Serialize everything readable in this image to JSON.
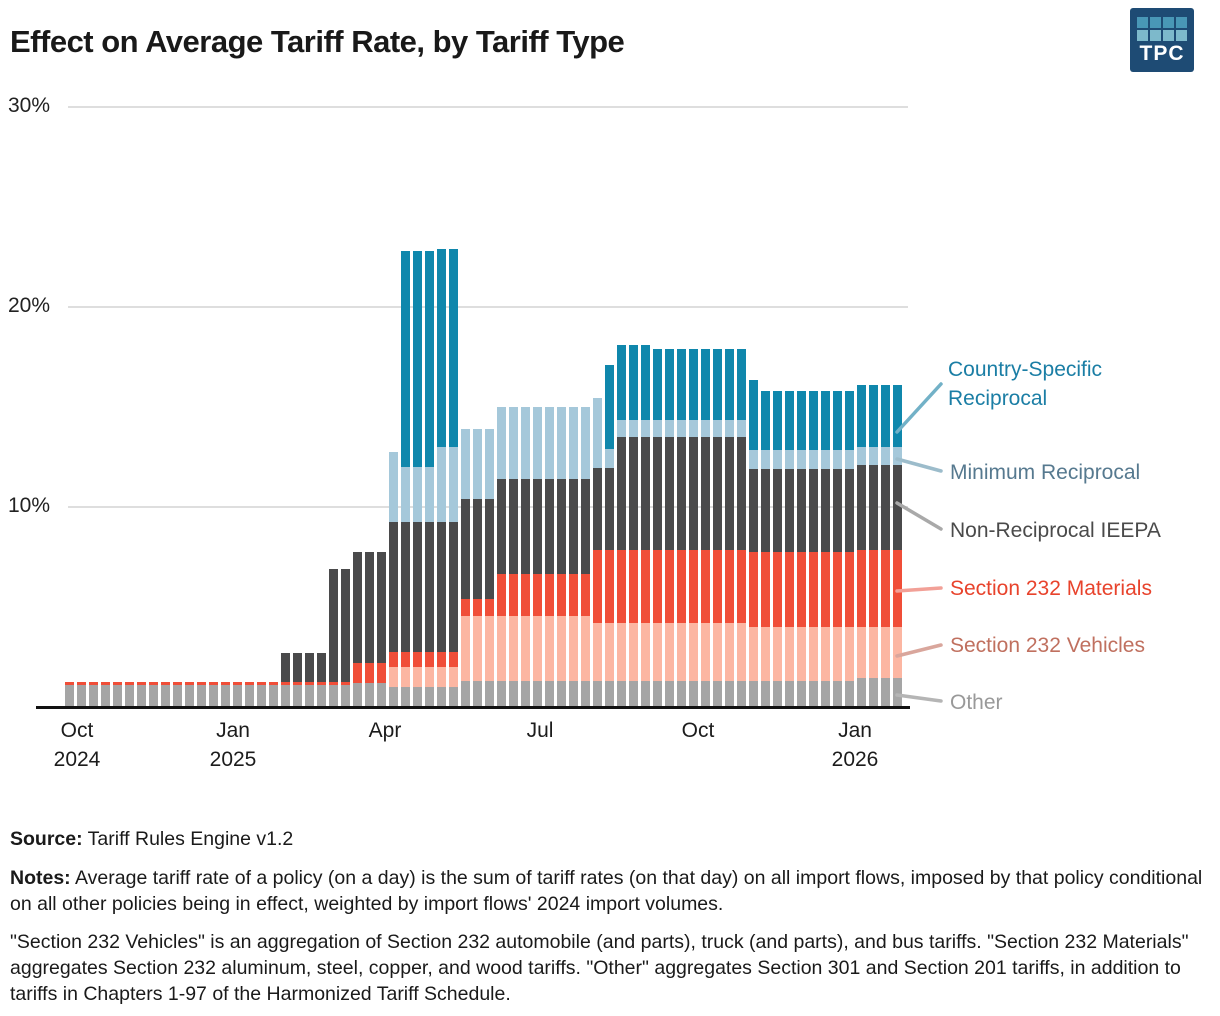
{
  "header": {
    "title": "Effect on Average Tariff Rate, by Tariff Type",
    "logo_text": "TPC",
    "logo_colors": {
      "background": "#1e4b74",
      "square_row1": "#4997b6",
      "square_row2": "#7db9cb"
    }
  },
  "y_axis": {
    "labels": [
      "30%",
      "20%",
      "10%"
    ],
    "values": [
      30,
      20,
      10
    ]
  },
  "x_axis": {
    "ticks": [
      {
        "line1": "Oct",
        "line2": "2024"
      },
      {
        "line1": "Jan",
        "line2": "2025"
      },
      {
        "line1": "Apr",
        "line2": ""
      },
      {
        "line1": "Jul",
        "line2": ""
      },
      {
        "line1": "Oct",
        "line2": ""
      },
      {
        "line1": "Jan",
        "line2": "2026"
      }
    ]
  },
  "legend": [
    {
      "label": "Country-Specific Reciprocal",
      "color": "#1b7ea5",
      "line_color": "#72b1c7"
    },
    {
      "label": "Minimum Reciprocal",
      "color": "#56798f",
      "line_color": "#9cbccb"
    },
    {
      "label": "Non-Reciprocal IEEPA",
      "color": "#4a4a4a",
      "line_color": "#a9a9a9"
    },
    {
      "label": "Section 232 Materials",
      "color": "#e8432c",
      "line_color": "#f2a097"
    },
    {
      "label": "Section 232 Vehicles",
      "color": "#c0705f",
      "line_color": "#d9a69c"
    },
    {
      "label": "Other",
      "color": "#999999",
      "line_color": "#b5b5b5"
    }
  ],
  "footer": {
    "source_label": "Source:",
    "source_text": " Tariff Rules Engine v1.2",
    "notes_label": "Notes:",
    "notes_text": " Average tariff rate of a policy (on a day) is the sum of tariff rates (on that day) on all import flows, imposed by that policy conditional on all other policies being in effect, weighted by import flows' 2024 import volumes.",
    "notes2_text": "\"Section 232 Vehicles\" is an aggregation of Section 232 automobile (and parts), truck (and parts), and bus tariffs. \"Section 232 Materials\" aggregates Section 232 aluminum, steel, copper, and wood tariffs. \"Other\" aggregates Section 301 and Section 201 tariffs, in addition to tariffs in Chapters 1-97 of the Harmonized Tariff Schedule."
  },
  "chart_data": {
    "type": "bar",
    "subtype": "stacked-weekly",
    "title": "Effect on Average Tariff Rate, by Tariff Type",
    "unit": "percent",
    "weeks": 70,
    "x_tick_labels": [
      "Oct 2024",
      "Jan 2025",
      "Apr",
      "Jul",
      "Oct",
      "Jan 2026"
    ],
    "x_tick_week_index": [
      0,
      13,
      26,
      39,
      52,
      65
    ],
    "ylim": [
      0,
      30
    ],
    "grid": "horizontal",
    "legend_position": "right",
    "stack_order_bottom_to_top": [
      "Other",
      "Section 232 Vehicles",
      "Section 232 Materials",
      "Non-Reciprocal IEEPA",
      "Minimum Reciprocal",
      "Country-Specific Reciprocal"
    ],
    "series": [
      {
        "name": "Other",
        "color": "#a5a5a5",
        "values": [
          1.1,
          1.1,
          1.1,
          1.1,
          1.1,
          1.1,
          1.1,
          1.1,
          1.1,
          1.1,
          1.1,
          1.1,
          1.1,
          1.1,
          1.1,
          1.1,
          1.1,
          1.1,
          1.1,
          1.1,
          1.1,
          1.1,
          1.1,
          1.1,
          1.2,
          1.2,
          1.2,
          1.0,
          1.0,
          1.0,
          1.0,
          1.0,
          1.0,
          1.3,
          1.3,
          1.3,
          1.3,
          1.3,
          1.3,
          1.3,
          1.3,
          1.3,
          1.3,
          1.3,
          1.3,
          1.3,
          1.3,
          1.3,
          1.3,
          1.3,
          1.3,
          1.3,
          1.3,
          1.3,
          1.3,
          1.3,
          1.3,
          1.3,
          1.3,
          1.3,
          1.3,
          1.3,
          1.3,
          1.3,
          1.3,
          1.3,
          1.45,
          1.45,
          1.45,
          1.45
        ]
      },
      {
        "name": "Section 232 Vehicles",
        "color": "#fcb6a2",
        "values": [
          0,
          0,
          0,
          0,
          0,
          0,
          0,
          0,
          0,
          0,
          0,
          0,
          0,
          0,
          0,
          0,
          0,
          0,
          0,
          0,
          0,
          0,
          0,
          0,
          0,
          0,
          0,
          1.0,
          1.0,
          1.0,
          1.0,
          1.0,
          1.0,
          3.25,
          3.25,
          3.25,
          3.25,
          3.25,
          3.25,
          3.25,
          3.25,
          3.25,
          3.25,
          3.25,
          2.9,
          2.9,
          2.9,
          2.9,
          2.9,
          2.9,
          2.9,
          2.9,
          2.9,
          2.9,
          2.9,
          2.9,
          2.9,
          2.7,
          2.7,
          2.7,
          2.7,
          2.7,
          2.7,
          2.7,
          2.7,
          2.7,
          2.55,
          2.55,
          2.55,
          2.55
        ]
      },
      {
        "name": "Section 232 Materials",
        "color": "#f04e38",
        "values": [
          0.15,
          0.15,
          0.15,
          0.15,
          0.15,
          0.15,
          0.15,
          0.15,
          0.15,
          0.15,
          0.15,
          0.15,
          0.15,
          0.15,
          0.15,
          0.15,
          0.15,
          0.15,
          0.15,
          0.15,
          0.15,
          0.15,
          0.15,
          0.15,
          1.0,
          1.0,
          1.0,
          0.75,
          0.75,
          0.75,
          0.75,
          0.75,
          0.75,
          0.85,
          0.85,
          0.85,
          2.1,
          2.1,
          2.1,
          2.1,
          2.1,
          2.1,
          2.1,
          2.1,
          3.65,
          3.65,
          3.65,
          3.65,
          3.65,
          3.65,
          3.65,
          3.65,
          3.65,
          3.65,
          3.65,
          3.65,
          3.65,
          3.75,
          3.75,
          3.75,
          3.75,
          3.75,
          3.75,
          3.75,
          3.75,
          3.75,
          3.85,
          3.85,
          3.85,
          3.85
        ]
      },
      {
        "name": "Non-Reciprocal IEEPA",
        "color": "#4a4a4b",
        "values": [
          0,
          0,
          0,
          0,
          0,
          0,
          0,
          0,
          0,
          0,
          0,
          0,
          0,
          0,
          0,
          0,
          0,
          0,
          1.45,
          1.45,
          1.45,
          1.45,
          5.65,
          5.65,
          5.55,
          5.55,
          5.55,
          6.5,
          6.5,
          6.5,
          6.5,
          6.5,
          6.5,
          5.0,
          5.0,
          5.0,
          4.75,
          4.75,
          4.75,
          4.75,
          4.75,
          4.75,
          4.75,
          4.75,
          4.1,
          4.1,
          5.65,
          5.65,
          5.65,
          5.65,
          5.65,
          5.65,
          5.65,
          5.65,
          5.65,
          5.65,
          5.65,
          4.15,
          4.15,
          4.15,
          4.15,
          4.15,
          4.15,
          4.15,
          4.15,
          4.15,
          4.25,
          4.25,
          4.25,
          4.25
        ]
      },
      {
        "name": "Minimum Reciprocal",
        "color": "#a5c8da",
        "values": [
          0,
          0,
          0,
          0,
          0,
          0,
          0,
          0,
          0,
          0,
          0,
          0,
          0,
          0,
          0,
          0,
          0,
          0,
          0,
          0,
          0,
          0,
          0,
          0,
          0,
          0,
          0,
          3.5,
          2.75,
          2.75,
          2.75,
          3.75,
          3.75,
          3.5,
          3.5,
          3.5,
          3.6,
          3.6,
          3.6,
          3.6,
          3.6,
          3.6,
          3.6,
          3.6,
          3.5,
          0.95,
          0.85,
          0.85,
          0.85,
          0.85,
          0.85,
          0.85,
          0.85,
          0.85,
          0.85,
          0.85,
          0.85,
          0.95,
          0.95,
          0.95,
          0.95,
          0.95,
          0.95,
          0.95,
          0.95,
          0.95,
          0.9,
          0.9,
          0.9,
          0.9
        ]
      },
      {
        "name": "Country-Specific Reciprocal",
        "color": "#0f87ac",
        "values": [
          0,
          0,
          0,
          0,
          0,
          0,
          0,
          0,
          0,
          0,
          0,
          0,
          0,
          0,
          0,
          0,
          0,
          0,
          0,
          0,
          0,
          0,
          0,
          0,
          0,
          0,
          0,
          0,
          10.8,
          10.8,
          10.8,
          9.9,
          9.9,
          0,
          0,
          0,
          0,
          0,
          0,
          0,
          0,
          0,
          0,
          0,
          0,
          4.2,
          3.75,
          3.75,
          3.75,
          3.55,
          3.55,
          3.55,
          3.55,
          3.55,
          3.55,
          3.55,
          3.55,
          3.5,
          2.95,
          2.95,
          2.95,
          2.95,
          2.95,
          2.95,
          2.95,
          2.95,
          3.1,
          3.1,
          3.1,
          3.1
        ]
      }
    ]
  }
}
